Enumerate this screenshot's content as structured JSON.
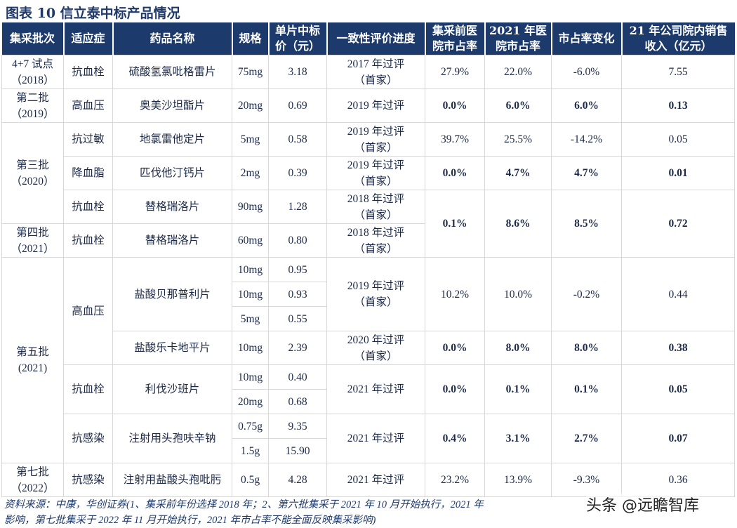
{
  "title": "图表 10  信立泰中标产品情况",
  "table": {
    "headers": [
      "集采批次",
      "适应症",
      "药品名称",
      "规格",
      "单片中标\n价（元）",
      "一致性评价进度",
      "集采前医\n院市占率",
      "2021 年医\n院市占率",
      "市占率变化",
      "21 年公司院内销售\n收入（亿元）"
    ],
    "rows": [
      [
        "4+7 试点\n（2018）",
        "抗血栓",
        "硫酸氢氯吡格雷片",
        "75mg",
        "3.18",
        "2017 年过评\n（首家）",
        "27.9%",
        "22.0%",
        "-6.0%",
        "7.55"
      ],
      [
        "第二批\n（2019）",
        "高血压",
        "奥美沙坦酯片",
        "20mg",
        "0.69",
        "2019 年过评",
        "0.0%",
        "6.0%",
        "6.0%",
        "0.13"
      ],
      [
        "第三批\n（2020）",
        "抗过敏",
        "地氯雷他定片",
        "5mg",
        "0.58",
        "2019 年过评\n（首家）",
        "39.7%",
        "25.5%",
        "-14.2%",
        "0.05"
      ],
      [
        "降血脂",
        "匹伐他汀钙片",
        "2mg",
        "0.39",
        "2019 年过评\n（首家）",
        "0.0%",
        "4.7%",
        "4.7%",
        "0.01"
      ],
      [
        "抗血栓",
        "替格瑞洛片",
        "90mg",
        "1.28",
        "2018 年过评\n（首家）",
        "0.1%",
        "8.6%",
        "8.5%",
        "0.72"
      ],
      [
        "第四批\n（2021）",
        "抗血栓",
        "替格瑞洛片",
        "60mg",
        "0.80",
        "2018 年过评\n（首家）"
      ],
      [
        "第五批\n(2021)",
        "高血压",
        "盐酸贝那普利片",
        "10mg",
        "0.95",
        "2019 年过评\n（首家）",
        "10.2%",
        "10.0%",
        "-0.2%",
        "0.44"
      ],
      [
        "10mg",
        "0.93"
      ],
      [
        "5mg",
        "0.55"
      ],
      [
        "盐酸乐卡地平片",
        "10mg",
        "2.39",
        "2020 年过评\n（首家）",
        "0.0%",
        "8.0%",
        "8.0%",
        "0.38"
      ],
      [
        "抗血栓",
        "利伐沙班片",
        "10mg",
        "0.40",
        "2021 年过评",
        "0.0%",
        "0.1%",
        "0.1%",
        "0.05"
      ],
      [
        "20mg",
        "0.68"
      ],
      [
        "抗感染",
        "注射用头孢呋辛钠",
        "0.75g",
        "9.35",
        "2021 年过评",
        "0.4%",
        "3.1%",
        "2.7%",
        "0.07"
      ],
      [
        "1.5g",
        "15.90"
      ],
      [
        "第七批\n（2022）",
        "抗感染",
        "注射用盐酸头孢吡肟",
        "0.5g",
        "4.28",
        "2021 年过评",
        "23.2%",
        "13.9%",
        "-9.3%",
        "0.36"
      ]
    ]
  },
  "footnote": {
    "line1": "资料来源：中康，华创证券(1、集采前年份选择 2018 年；2、第六批集采于 2021 年 10 月开始执行，2021 年",
    "line2": "影响，第七批集采于 2022 年 11 月开始执行，2021 年市占率不能全面反映集采影响)"
  },
  "watermark": "头条 @远瞻智库"
}
